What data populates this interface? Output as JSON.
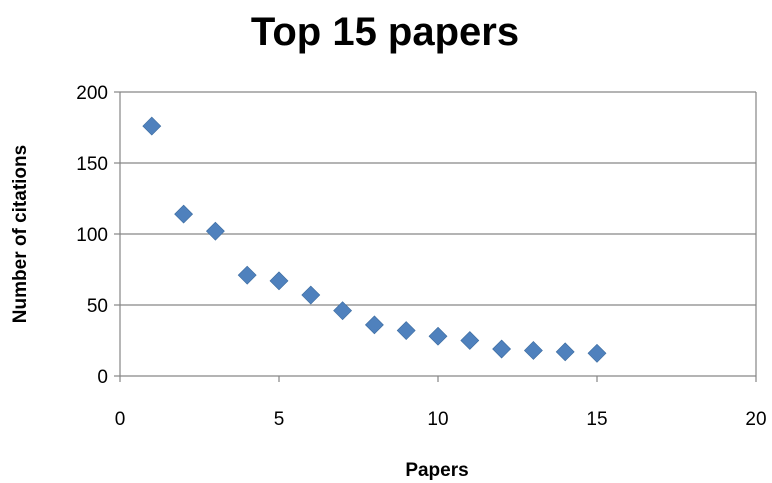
{
  "chart_data": {
    "type": "scatter",
    "title": "Top 15 papers",
    "xlabel": "Papers",
    "ylabel": "Number of citations",
    "xlim": [
      0,
      20
    ],
    "ylim": [
      0,
      200
    ],
    "xticks": [
      0,
      5,
      10,
      15,
      20
    ],
    "yticks": [
      0,
      50,
      100,
      150,
      200
    ],
    "xtick_labels": [
      "0",
      "5",
      "10",
      "15",
      "20"
    ],
    "ytick_labels": [
      "0",
      "50",
      "100",
      "150",
      "200"
    ],
    "grid": "horizontal",
    "legend": "none",
    "marker": "diamond",
    "colors": {
      "marker": "#4F81BD",
      "grid": "#868686",
      "axis": "#868686"
    },
    "series": [
      {
        "x": [
          1,
          2,
          3,
          4,
          5,
          6,
          7,
          8,
          9,
          10,
          11,
          12,
          13,
          14,
          15
        ],
        "y": [
          176,
          114,
          102,
          71,
          67,
          57,
          46,
          36,
          32,
          28,
          25,
          19,
          18,
          17,
          16
        ]
      }
    ]
  }
}
